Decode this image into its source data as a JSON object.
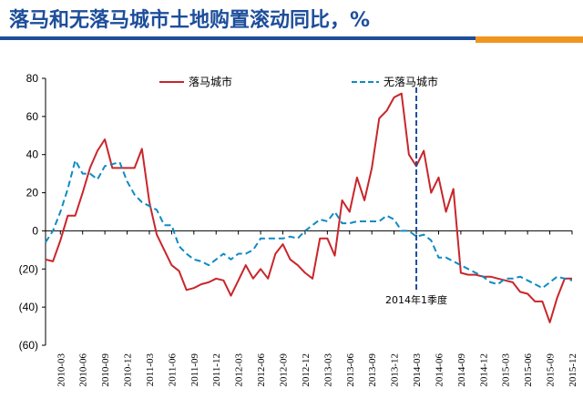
{
  "page": {
    "title": "落马和无落马城市土地购置滚动同比，%"
  },
  "colors": {
    "title": "#1d4e9a",
    "accent_bar": "#f0961e",
    "series_fallen": "#c8262b",
    "series_non_fallen": "#0e8bc4"
  },
  "chart_data": {
    "type": "line",
    "ylim": [
      -60,
      80
    ],
    "yticks": [
      80,
      60,
      40,
      20,
      0,
      -20,
      -40,
      -60
    ],
    "ytick_labels": [
      "80",
      "60",
      "40",
      "20",
      "0",
      "(20)",
      "(40)",
      "(60)"
    ],
    "x_tick_labels": [
      "2010-03",
      "2010-06",
      "2010-09",
      "2010-12",
      "2011-03",
      "2011-06",
      "2011-09",
      "2011-12",
      "2012-03",
      "2012-06",
      "2012-09",
      "2012-12",
      "2013-03",
      "2013-06",
      "2013-09",
      "2013-12",
      "2014-03",
      "2014-06",
      "2014-09",
      "2014-12",
      "2015-03",
      "2015-06",
      "2015-09",
      "2015-12"
    ],
    "legend_position": "top",
    "grid": false,
    "annotation": {
      "label": "2014年1季度",
      "x": "2014-03"
    },
    "series": [
      {
        "name": "落马城市",
        "style": "solid",
        "x": [
          "2010-01",
          "2010-02",
          "2010-03",
          "2010-04",
          "2010-05",
          "2010-06",
          "2010-07",
          "2010-08",
          "2010-09",
          "2010-10",
          "2010-11",
          "2010-12",
          "2011-01",
          "2011-02",
          "2011-03",
          "2011-04",
          "2011-05",
          "2011-06",
          "2011-07",
          "2011-08",
          "2011-09",
          "2011-10",
          "2011-11",
          "2011-12",
          "2012-01",
          "2012-02",
          "2012-03",
          "2012-04",
          "2012-05",
          "2012-06",
          "2012-07",
          "2012-08",
          "2012-09",
          "2012-10",
          "2012-11",
          "2012-12",
          "2013-01",
          "2013-02",
          "2013-03",
          "2013-04",
          "2013-05",
          "2013-06",
          "2013-07",
          "2013-08",
          "2013-09",
          "2013-10",
          "2013-11",
          "2013-12",
          "2014-01",
          "2014-02",
          "2014-03",
          "2014-04",
          "2014-05",
          "2014-06",
          "2014-07",
          "2014-08",
          "2014-09",
          "2014-10",
          "2014-11",
          "2014-12",
          "2015-01",
          "2015-02",
          "2015-03",
          "2015-04",
          "2015-05",
          "2015-06",
          "2015-07",
          "2015-08",
          "2015-09",
          "2015-10",
          "2015-11",
          "2015-12"
        ],
        "values": [
          -15,
          -16,
          -5,
          8,
          8,
          20,
          33,
          42,
          48,
          33,
          33,
          33,
          33,
          43,
          15,
          -2,
          -10,
          -18,
          -21,
          -31,
          -30,
          -28,
          -27,
          -25,
          -26,
          -34,
          -26,
          -18,
          -25,
          -20,
          -25,
          -12,
          -7,
          -15,
          -18,
          -22,
          -25,
          -4,
          -4,
          -13,
          16,
          10,
          28,
          16,
          33,
          59,
          63,
          70,
          72,
          40,
          34,
          42,
          20,
          28,
          10,
          22,
          -22,
          -23,
          -23,
          -24,
          -24,
          -25,
          -26,
          -27,
          -32,
          -33,
          -37,
          -37,
          -48,
          -35,
          -25,
          -25
        ]
      },
      {
        "name": "无落马城市",
        "style": "dashed",
        "x": [
          "2010-01",
          "2010-02",
          "2010-03",
          "2010-04",
          "2010-05",
          "2010-06",
          "2010-07",
          "2010-08",
          "2010-09",
          "2010-10",
          "2010-11",
          "2010-12",
          "2011-01",
          "2011-02",
          "2011-03",
          "2011-04",
          "2011-05",
          "2011-06",
          "2011-07",
          "2011-08",
          "2011-09",
          "2011-10",
          "2011-11",
          "2011-12",
          "2012-01",
          "2012-02",
          "2012-03",
          "2012-04",
          "2012-05",
          "2012-06",
          "2012-07",
          "2012-08",
          "2012-09",
          "2012-10",
          "2012-11",
          "2012-12",
          "2013-01",
          "2013-02",
          "2013-03",
          "2013-04",
          "2013-05",
          "2013-06",
          "2013-07",
          "2013-08",
          "2013-09",
          "2013-10",
          "2013-11",
          "2013-12",
          "2014-01",
          "2014-02",
          "2014-03",
          "2014-04",
          "2014-05",
          "2014-06",
          "2014-07",
          "2014-08",
          "2014-09",
          "2014-10",
          "2014-11",
          "2014-12",
          "2015-01",
          "2015-02",
          "2015-03",
          "2015-04",
          "2015-05",
          "2015-06",
          "2015-07",
          "2015-08",
          "2015-09",
          "2015-10",
          "2015-11",
          "2015-12"
        ],
        "values": [
          -6,
          0,
          10,
          22,
          37,
          30,
          30,
          27,
          34,
          35,
          36,
          26,
          19,
          15,
          13,
          11,
          3,
          3,
          -8,
          -12,
          -15,
          -16,
          -18,
          -15,
          -12,
          -15,
          -12,
          -12,
          -10,
          -4,
          -4,
          -4,
          -4,
          -3,
          -4,
          0,
          3,
          6,
          5,
          10,
          4,
          4,
          5,
          5,
          5,
          5,
          8,
          6,
          0,
          0,
          -3,
          -2,
          -5,
          -14,
          -14,
          -16,
          -18,
          -20,
          -22,
          -24,
          -27,
          -28,
          -25,
          -25,
          -24,
          -26,
          -28,
          -30,
          -27,
          -24,
          -25,
          -26
        ]
      }
    ]
  }
}
